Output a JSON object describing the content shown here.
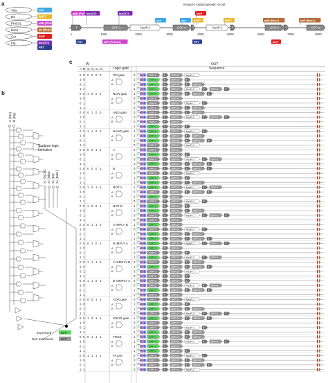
{
  "panel_labels": {
    "a": "a",
    "b": "b",
    "c": "c"
  },
  "circuit_title": "6-input-1-output genetic circuit",
  "recombinase_pairs": [
    {
      "recombinase": "Vika",
      "site": "vox",
      "color": "#3fa9e6"
    },
    {
      "recombinase": "B3",
      "site": "B3RT",
      "color": "#e8b730"
    },
    {
      "recombinase": "PhiC31",
      "site": "attB (PhiC31)",
      "color": "#cc44cc"
    },
    {
      "recombinase": "Bxb1",
      "site": "att (Bxb1)",
      "color": "#b5703a"
    },
    {
      "recombinase": "Cre",
      "site": "loxP",
      "color": "#e02020"
    },
    {
      "recombinase": "Flp",
      "site": "lox2272",
      "color": "#7a2fb0"
    },
    {
      "recombinase": "",
      "site": "FRT",
      "color": "#2a3c8f"
    }
  ],
  "circuit_sites_top": [
    {
      "label": "attB (PhiC31)",
      "color": "#cc44cc"
    },
    {
      "label": "lox2272",
      "color": "#7a2fb0"
    },
    {
      "label": "lox2272",
      "color": "#7a2fb0"
    },
    {
      "label": "vox",
      "color": "#3fa9e6"
    },
    {
      "label": "vox",
      "color": "#3fa9e6"
    },
    {
      "label": "loxP",
      "color": "#e02020"
    },
    {
      "label": "B3RT",
      "color": "#e8b730"
    },
    {
      "label": "B3RT",
      "color": "#e8b730"
    },
    {
      "label": "attB (Bxb1)",
      "color": "#b5703a"
    },
    {
      "label": "attP (Bxb1)",
      "color": "#b5703a"
    }
  ],
  "circuit_sites_bottom": [
    {
      "label": "FRT",
      "color": "#2a3c8f"
    },
    {
      "label": "attP (PhiC31)",
      "color": "#cc44cc"
    },
    {
      "label": "FRT",
      "color": "#2a3c8f"
    },
    {
      "label": "loxP",
      "color": "#e02020"
    }
  ],
  "circuit_parts": [
    "T",
    "GFP-1",
    "NeoR-1",
    "GFP-2",
    "T",
    "NeoR-2",
    "T",
    "GFP-3",
    "T",
    "GFP-4"
  ],
  "circuit_axis": [
    "1",
    "1000",
    "2000",
    "3000",
    "4000",
    "5000",
    "6000",
    "7000",
    "8000"
  ],
  "panel_b": {
    "inputs": [
      "A (Cre)",
      "B (Flp)"
    ],
    "selection_title": "Boolean logic selection",
    "selectors": [
      "S₁ (ΦC31)",
      "S₂ (Vika)",
      "S₃ (B3)",
      "S₄ (Bxb1)"
    ],
    "legend": [
      {
        "label": "Expressed",
        "tag": "GFP",
        "color": "#5cd65c"
      },
      {
        "label": "Non-expressed",
        "tag": "GFP",
        "color": "#999999"
      }
    ]
  },
  "panel_c": {
    "in_header": "IN",
    "gate_header": "Logic gate",
    "out_header": "OUT",
    "seq_header": "Sequence",
    "col_headers": [
      "A",
      "B",
      "S₁",
      "S₂",
      "S₃",
      "S₄"
    ],
    "gates": [
      {
        "name": "OR gate",
        "sel": "0000",
        "out": [
          0,
          1,
          1,
          1
        ]
      },
      {
        "name": "NOR gate",
        "sel": "1000",
        "out": [
          1,
          0,
          0,
          0
        ]
      },
      {
        "name": "AND gate",
        "sel": "0100",
        "out": [
          0,
          0,
          0,
          1
        ]
      },
      {
        "name": "NAND gate",
        "sel": "1100",
        "out": [
          1,
          1,
          1,
          0
        ]
      },
      {
        "name": "A",
        "sel": "0010",
        "out": [
          0,
          1,
          0,
          1
        ]
      },
      {
        "name": "B",
        "sel": "0001",
        "out": [
          0,
          0,
          1,
          1
        ]
      },
      {
        "name": "NOT A",
        "sel": "1010",
        "out": [
          1,
          0,
          1,
          0
        ]
      },
      {
        "name": "NOT B",
        "sel": "1001",
        "out": [
          1,
          1,
          0,
          0
        ]
      },
      {
        "name": "A IMPLY B",
        "sel": "0110",
        "out": [
          1,
          0,
          1,
          1
        ]
      },
      {
        "name": "B IMPLY A",
        "sel": "0101",
        "out": [
          1,
          1,
          0,
          1
        ]
      },
      {
        "name": "A NIMPLY B",
        "sel": "1110",
        "out": [
          0,
          1,
          0,
          0
        ]
      },
      {
        "name": "B NIMPLY A",
        "sel": "1101",
        "out": [
          0,
          0,
          1,
          0
        ]
      },
      {
        "name": "XOR gate",
        "sel": "0011",
        "out": [
          0,
          1,
          1,
          0
        ]
      },
      {
        "name": "XNOR gate",
        "sel": "1011",
        "out": [
          1,
          0,
          0,
          1
        ]
      },
      {
        "name": "TRUE",
        "sel": "0111",
        "out": [
          1,
          1,
          1,
          1
        ]
      },
      {
        "name": "FALSE",
        "sel": "1111",
        "out": [
          0,
          0,
          0,
          0
        ]
      }
    ],
    "ab_rows": [
      [
        "0",
        "0"
      ],
      [
        "1",
        "0"
      ],
      [
        "0",
        "1"
      ],
      [
        "1",
        "1"
      ]
    ],
    "part_labels": [
      "T",
      "GFP-1",
      "GFP-2",
      "GFP-3",
      "GFP-4",
      "NeoR-1",
      "NeoR-2"
    ]
  }
}
